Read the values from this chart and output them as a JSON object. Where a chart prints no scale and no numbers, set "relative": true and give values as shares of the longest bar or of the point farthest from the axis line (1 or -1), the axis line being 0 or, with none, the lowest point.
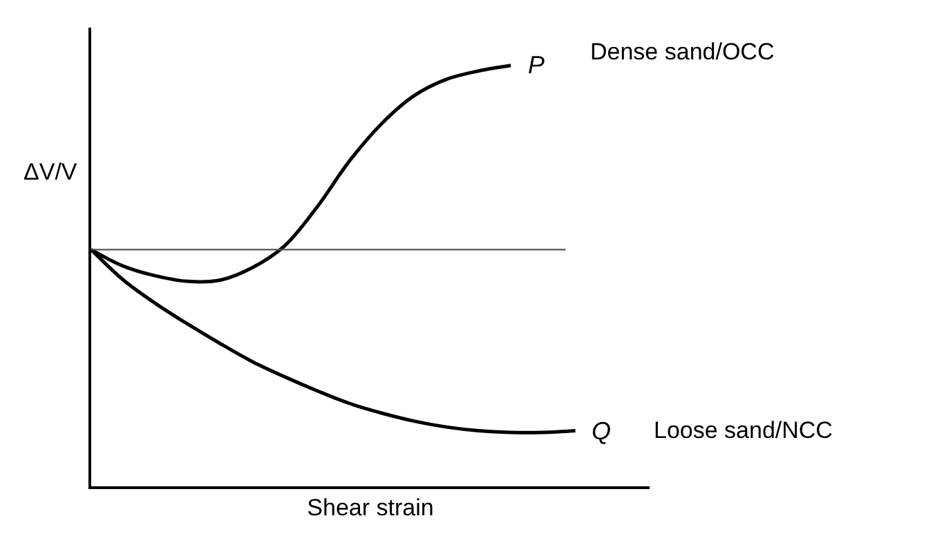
{
  "chart_data": {
    "type": "line",
    "relative": true,
    "xlabel": "Shear strain",
    "ylabel": "ΔV/V",
    "categories": [
      null,
      null,
      null,
      null,
      null,
      null,
      null,
      null,
      null,
      null,
      null,
      null,
      null,
      null,
      null,
      null
    ],
    "series": [
      {
        "name": "P",
        "color": "#000000",
        "values": [
          0.5625,
          0.523,
          0.5,
          0.487,
          0.49,
          0.52,
          0.572,
          0.664,
          0.773,
          0.862,
          0.928,
          0.967,
          0.987,
          1.0,
          null,
          null
        ]
      },
      {
        "name": "Q",
        "color": "#000000",
        "values": [
          0.5625,
          0.49,
          0.434,
          0.385,
          0.339,
          0.296,
          0.26,
          0.227,
          0.197,
          0.174,
          0.155,
          0.141,
          0.132,
          0.128,
          0.128,
          0.132
        ]
      }
    ],
    "ref_lines": [
      {
        "axis": "y",
        "value": 0.5625,
        "color": "#555555"
      }
    ],
    "annotations": [
      "Dense sand/OCC",
      "Loose sand/NCC"
    ],
    "legend": false,
    "marker": "none",
    "line_style": "solid"
  }
}
